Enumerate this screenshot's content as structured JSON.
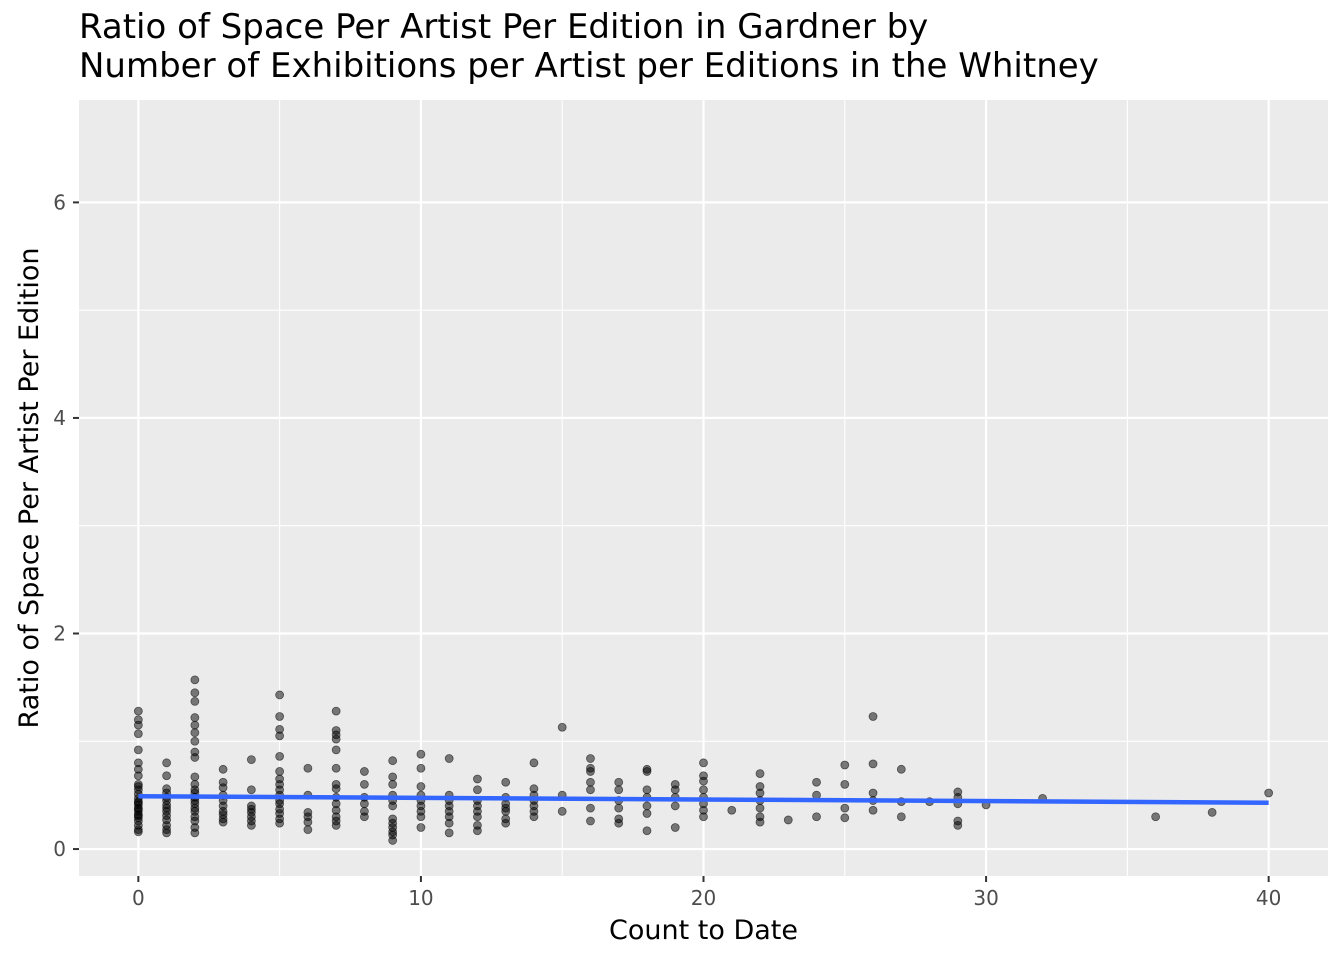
{
  "chart_data": {
    "type": "scatter",
    "title": "Ratio of Space Per Artist Per Edition in Gardner by\nNumber of Exhibitions per Artist per Editions in the Whitney",
    "xlabel": "Count to Date",
    "ylabel": "Ratio of Space Per Artist Per Edition",
    "xlim": [
      -2.1,
      42.1
    ],
    "ylim": [
      -0.25,
      6.95
    ],
    "x_ticks": [
      0,
      10,
      20,
      30,
      40
    ],
    "x_tick_labels": [
      "0",
      "10",
      "20",
      "30",
      "40"
    ],
    "y_ticks": [
      0,
      2,
      4,
      6
    ],
    "y_tick_labels": [
      "0",
      "2",
      "4",
      "6"
    ],
    "grid": true,
    "legend": "none",
    "colors": {
      "panel": "#ebebeb",
      "grid": "#ffffff",
      "point": "#000000",
      "trend": "#3366ff",
      "axis_text": "#4d4d4d",
      "title_text": "#000000"
    },
    "series": [
      {
        "type": "scatter",
        "points": [
          [
            0,
            1.28
          ],
          [
            0,
            1.2
          ],
          [
            0,
            1.15
          ],
          [
            0,
            1.07
          ],
          [
            0,
            0.92
          ],
          [
            0,
            0.8
          ],
          [
            0,
            0.74
          ],
          [
            0,
            0.68
          ],
          [
            0,
            0.6
          ],
          [
            0,
            0.55
          ],
          [
            0,
            0.51
          ],
          [
            0,
            0.47
          ],
          [
            0,
            0.44
          ],
          [
            0,
            0.41
          ],
          [
            0,
            0.38
          ],
          [
            0,
            0.35
          ],
          [
            0,
            0.32
          ],
          [
            0,
            0.29
          ],
          [
            0,
            0.26
          ],
          [
            0,
            0.22
          ],
          [
            0,
            0.18
          ],
          [
            0,
            0.16
          ],
          [
            0,
            0.43
          ],
          [
            0,
            0.37
          ],
          [
            0,
            0.58
          ],
          [
            0,
            0.31
          ],
          [
            1,
            0.8
          ],
          [
            1,
            0.68
          ],
          [
            1,
            0.56
          ],
          [
            1,
            0.52
          ],
          [
            1,
            0.48
          ],
          [
            1,
            0.45
          ],
          [
            1,
            0.41
          ],
          [
            1,
            0.38
          ],
          [
            1,
            0.35
          ],
          [
            1,
            0.31
          ],
          [
            1,
            0.27
          ],
          [
            1,
            0.22
          ],
          [
            1,
            0.18
          ],
          [
            1,
            0.15
          ],
          [
            2,
            1.57
          ],
          [
            2,
            1.45
          ],
          [
            2,
            1.37
          ],
          [
            2,
            1.22
          ],
          [
            2,
            1.15
          ],
          [
            2,
            1.08
          ],
          [
            2,
            1.0
          ],
          [
            2,
            0.9
          ],
          [
            2,
            0.85
          ],
          [
            2,
            0.67
          ],
          [
            2,
            0.6
          ],
          [
            2,
            0.55
          ],
          [
            2,
            0.52
          ],
          [
            2,
            0.48
          ],
          [
            2,
            0.45
          ],
          [
            2,
            0.42
          ],
          [
            2,
            0.38
          ],
          [
            2,
            0.35
          ],
          [
            2,
            0.3
          ],
          [
            2,
            0.26
          ],
          [
            2,
            0.2
          ],
          [
            2,
            0.15
          ],
          [
            3,
            0.74
          ],
          [
            3,
            0.62
          ],
          [
            3,
            0.57
          ],
          [
            3,
            0.5
          ],
          [
            3,
            0.45
          ],
          [
            3,
            0.4
          ],
          [
            3,
            0.35
          ],
          [
            3,
            0.32
          ],
          [
            3,
            0.28
          ],
          [
            3,
            0.25
          ],
          [
            4,
            0.83
          ],
          [
            4,
            0.55
          ],
          [
            4,
            0.4
          ],
          [
            4,
            0.37
          ],
          [
            4,
            0.34
          ],
          [
            4,
            0.3
          ],
          [
            4,
            0.26
          ],
          [
            4,
            0.22
          ],
          [
            5,
            1.43
          ],
          [
            5,
            1.23
          ],
          [
            5,
            1.11
          ],
          [
            5,
            1.05
          ],
          [
            5,
            0.86
          ],
          [
            5,
            0.72
          ],
          [
            5,
            0.65
          ],
          [
            5,
            0.6
          ],
          [
            5,
            0.55
          ],
          [
            5,
            0.5
          ],
          [
            5,
            0.45
          ],
          [
            5,
            0.42
          ],
          [
            5,
            0.37
          ],
          [
            5,
            0.33
          ],
          [
            5,
            0.28
          ],
          [
            5,
            0.24
          ],
          [
            6,
            0.75
          ],
          [
            6,
            0.5
          ],
          [
            6,
            0.34
          ],
          [
            6,
            0.3
          ],
          [
            6,
            0.25
          ],
          [
            6,
            0.18
          ],
          [
            7,
            1.28
          ],
          [
            7,
            1.1
          ],
          [
            7,
            1.06
          ],
          [
            7,
            1.02
          ],
          [
            7,
            0.92
          ],
          [
            7,
            0.75
          ],
          [
            7,
            0.6
          ],
          [
            7,
            0.56
          ],
          [
            7,
            0.48
          ],
          [
            7,
            0.42
          ],
          [
            7,
            0.36
          ],
          [
            7,
            0.3
          ],
          [
            7,
            0.26
          ],
          [
            7,
            0.22
          ],
          [
            8,
            0.72
          ],
          [
            8,
            0.6
          ],
          [
            8,
            0.48
          ],
          [
            8,
            0.42
          ],
          [
            8,
            0.35
          ],
          [
            8,
            0.3
          ],
          [
            9,
            0.82
          ],
          [
            9,
            0.67
          ],
          [
            9,
            0.6
          ],
          [
            9,
            0.5
          ],
          [
            9,
            0.45
          ],
          [
            9,
            0.4
          ],
          [
            9,
            0.28
          ],
          [
            9,
            0.24
          ],
          [
            9,
            0.2
          ],
          [
            9,
            0.16
          ],
          [
            9,
            0.13
          ],
          [
            9,
            0.08
          ],
          [
            10,
            0.88
          ],
          [
            10,
            0.75
          ],
          [
            10,
            0.58
          ],
          [
            10,
            0.5
          ],
          [
            10,
            0.45
          ],
          [
            10,
            0.4
          ],
          [
            10,
            0.35
          ],
          [
            10,
            0.3
          ],
          [
            10,
            0.2
          ],
          [
            11,
            0.84
          ],
          [
            11,
            0.5
          ],
          [
            11,
            0.45
          ],
          [
            11,
            0.4
          ],
          [
            11,
            0.35
          ],
          [
            11,
            0.3
          ],
          [
            11,
            0.24
          ],
          [
            11,
            0.15
          ],
          [
            12,
            0.65
          ],
          [
            12,
            0.55
          ],
          [
            12,
            0.45
          ],
          [
            12,
            0.4
          ],
          [
            12,
            0.35
          ],
          [
            12,
            0.3
          ],
          [
            12,
            0.22
          ],
          [
            12,
            0.17
          ],
          [
            13,
            0.62
          ],
          [
            13,
            0.48
          ],
          [
            13,
            0.42
          ],
          [
            13,
            0.38
          ],
          [
            13,
            0.35
          ],
          [
            13,
            0.28
          ],
          [
            13,
            0.24
          ],
          [
            14,
            0.8
          ],
          [
            14,
            0.56
          ],
          [
            14,
            0.5
          ],
          [
            14,
            0.45
          ],
          [
            14,
            0.4
          ],
          [
            14,
            0.35
          ],
          [
            14,
            0.3
          ],
          [
            15,
            1.13
          ],
          [
            15,
            0.5
          ],
          [
            15,
            0.35
          ],
          [
            16,
            0.84
          ],
          [
            16,
            0.75
          ],
          [
            16,
            0.72
          ],
          [
            16,
            0.62
          ],
          [
            16,
            0.55
          ],
          [
            16,
            0.38
          ],
          [
            16,
            0.26
          ],
          [
            17,
            0.62
          ],
          [
            17,
            0.55
          ],
          [
            17,
            0.45
          ],
          [
            17,
            0.38
          ],
          [
            17,
            0.28
          ],
          [
            17,
            0.24
          ],
          [
            18,
            0.74
          ],
          [
            18,
            0.72
          ],
          [
            18,
            0.55
          ],
          [
            18,
            0.48
          ],
          [
            18,
            0.4
          ],
          [
            18,
            0.33
          ],
          [
            18,
            0.17
          ],
          [
            19,
            0.6
          ],
          [
            19,
            0.55
          ],
          [
            19,
            0.48
          ],
          [
            19,
            0.4
          ],
          [
            19,
            0.2
          ],
          [
            20,
            0.8
          ],
          [
            20,
            0.68
          ],
          [
            20,
            0.63
          ],
          [
            20,
            0.55
          ],
          [
            20,
            0.48
          ],
          [
            20,
            0.42
          ],
          [
            20,
            0.36
          ],
          [
            20,
            0.3
          ],
          [
            21,
            0.36
          ],
          [
            22,
            0.7
          ],
          [
            22,
            0.58
          ],
          [
            22,
            0.52
          ],
          [
            22,
            0.45
          ],
          [
            22,
            0.38
          ],
          [
            22,
            0.3
          ],
          [
            22,
            0.25
          ],
          [
            23,
            0.27
          ],
          [
            24,
            0.62
          ],
          [
            24,
            0.5
          ],
          [
            24,
            0.3
          ],
          [
            25,
            0.78
          ],
          [
            25,
            0.6
          ],
          [
            25,
            0.38
          ],
          [
            25,
            0.29
          ],
          [
            26,
            1.23
          ],
          [
            26,
            0.79
          ],
          [
            26,
            0.52
          ],
          [
            26,
            0.45
          ],
          [
            26,
            0.36
          ],
          [
            27,
            0.74
          ],
          [
            27,
            0.44
          ],
          [
            27,
            0.3
          ],
          [
            28,
            0.44
          ],
          [
            29,
            0.53
          ],
          [
            29,
            0.48
          ],
          [
            29,
            0.42
          ],
          [
            29,
            0.26
          ],
          [
            29,
            0.22
          ],
          [
            30,
            0.41
          ],
          [
            32,
            0.47
          ],
          [
            36,
            0.3
          ],
          [
            38,
            0.34
          ],
          [
            40,
            0.52
          ]
        ]
      },
      {
        "type": "line",
        "x": [
          0,
          40
        ],
        "y": [
          0.49,
          0.43
        ]
      }
    ]
  }
}
